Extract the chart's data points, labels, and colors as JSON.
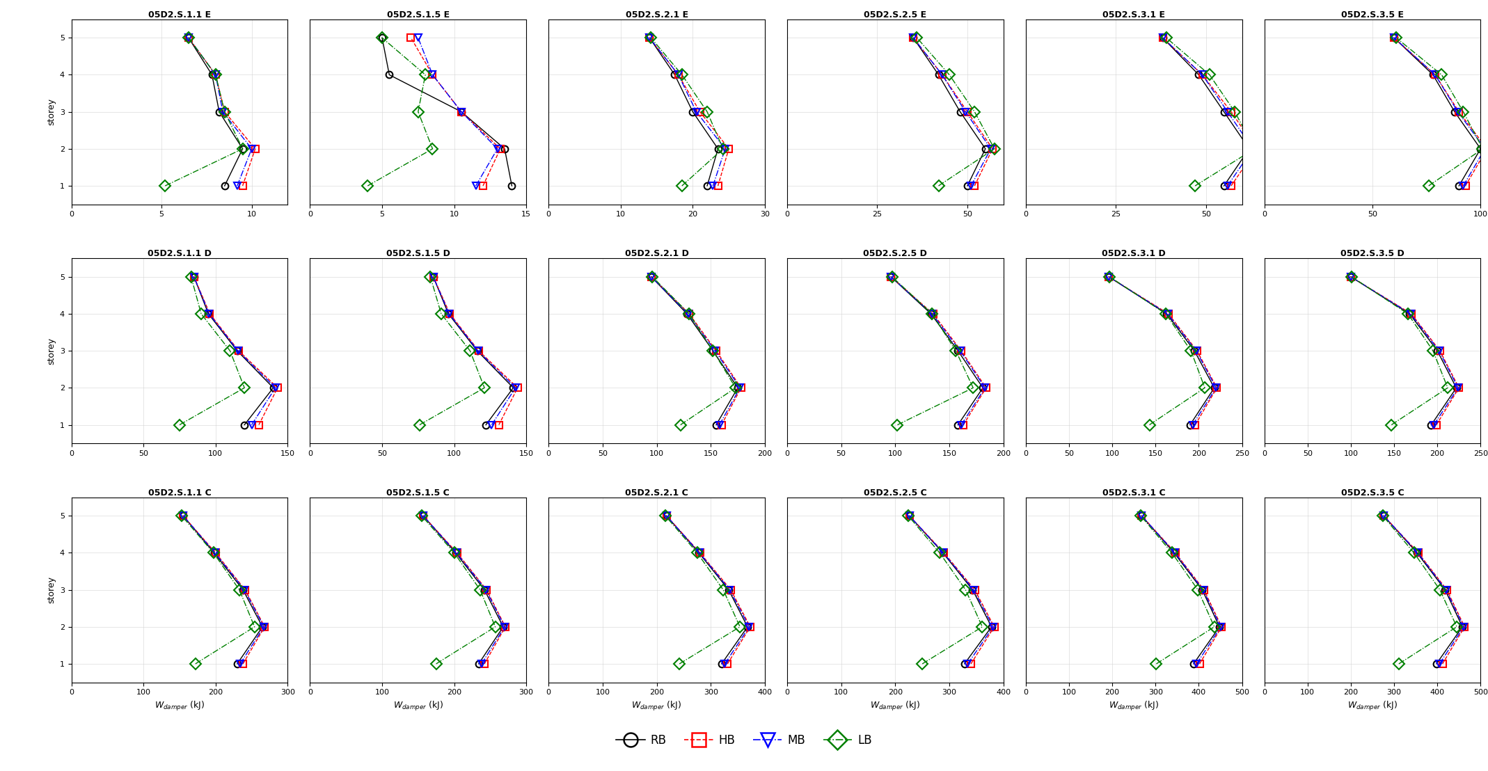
{
  "titles": [
    [
      "05D2.S.1.1 E",
      "05D2.S.1.5 E",
      "05D2.S.2.1 E",
      "05D2.S.2.5 E",
      "05D2.S.3.1 E",
      "05D2.S.3.5 E"
    ],
    [
      "05D2.S.1.1 D",
      "05D2.S.1.5 D",
      "05D2.S.2.1 D",
      "05D2.S.2.5 D",
      "05D2.S.3.1 D",
      "05D2.S.3.5 D"
    ],
    [
      "05D2.S.1.1 C",
      "05D2.S.1.5 C",
      "05D2.S.2.1 C",
      "05D2.S.2.5 C",
      "05D2.S.3.1 C",
      "05D2.S.3.5 C"
    ]
  ],
  "storeys": [
    1,
    2,
    3,
    4,
    5
  ],
  "colors": {
    "RB": "black",
    "HB": "red",
    "MB": "blue",
    "LB": "green"
  },
  "markers": {
    "RB": "o",
    "HB": "s",
    "MB": "v",
    "LB": "D"
  },
  "linestyles": {
    "RB": "-",
    "HB": "--",
    "MB": "-.",
    "LB": "-."
  },
  "series_keys": [
    "RB",
    "HB",
    "MB",
    "LB"
  ],
  "data": {
    "05D2.S.1.1 E": {
      "RB": [
        8.5,
        9.5,
        8.2,
        7.8,
        6.5
      ],
      "HB": [
        9.5,
        10.2,
        8.5,
        8.0,
        6.5
      ],
      "MB": [
        9.2,
        10.0,
        8.4,
        8.0,
        6.5
      ],
      "LB": [
        5.2,
        9.5,
        8.5,
        8.0,
        6.5
      ]
    },
    "05D2.S.1.5 E": {
      "RB": [
        14.0,
        13.5,
        10.5,
        5.5,
        5.0
      ],
      "HB": [
        12.0,
        13.2,
        10.5,
        8.5,
        7.0
      ],
      "MB": [
        11.5,
        13.0,
        10.5,
        8.5,
        7.5
      ],
      "LB": [
        4.0,
        8.5,
        7.5,
        8.0,
        5.0
      ]
    },
    "05D2.S.2.1 E": {
      "RB": [
        22.0,
        23.5,
        20.0,
        17.5,
        14.0
      ],
      "HB": [
        23.5,
        25.0,
        21.0,
        18.0,
        14.0
      ],
      "MB": [
        22.8,
        24.5,
        20.5,
        18.0,
        14.0
      ],
      "LB": [
        18.5,
        24.2,
        22.0,
        18.5,
        14.2
      ]
    },
    "05D2.S.2.5 E": {
      "RB": [
        50.0,
        55.0,
        48.0,
        42.0,
        35.0
      ],
      "HB": [
        52.0,
        57.0,
        50.0,
        43.0,
        35.0
      ],
      "MB": [
        51.0,
        56.5,
        49.5,
        43.0,
        35.0
      ],
      "LB": [
        42.0,
        57.5,
        52.0,
        45.0,
        36.0
      ]
    },
    "05D2.S.3.1 E": {
      "RB": [
        55.0,
        62.0,
        55.0,
        48.0,
        38.0
      ],
      "HB": [
        57.0,
        64.0,
        57.0,
        49.0,
        38.0
      ],
      "MB": [
        56.0,
        63.0,
        56.0,
        49.0,
        38.0
      ],
      "LB": [
        47.0,
        63.5,
        58.0,
        51.0,
        39.0
      ]
    },
    "05D2.S.3.5 E": {
      "RB": [
        90.0,
        100.0,
        88.0,
        78.0,
        60.0
      ],
      "HB": [
        93.0,
        103.0,
        90.0,
        79.0,
        60.0
      ],
      "MB": [
        92.0,
        102.0,
        89.5,
        79.0,
        60.0
      ],
      "LB": [
        76.0,
        101.0,
        92.0,
        82.0,
        61.0
      ]
    },
    "05D2.S.1.1 D": {
      "RB": [
        120.0,
        140.0,
        115.0,
        95.0,
        85.0
      ],
      "HB": [
        130.0,
        143.0,
        116.0,
        96.0,
        85.0
      ],
      "MB": [
        125.0,
        141.5,
        115.5,
        95.5,
        85.0
      ],
      "LB": [
        75.0,
        120.0,
        110.0,
        90.0,
        83.0
      ]
    },
    "05D2.S.1.5 D": {
      "RB": [
        122.0,
        141.0,
        116.0,
        96.0,
        85.5
      ],
      "HB": [
        131.0,
        144.0,
        117.0,
        97.0,
        85.5
      ],
      "MB": [
        126.0,
        142.5,
        116.5,
        96.5,
        85.5
      ],
      "LB": [
        76.0,
        121.0,
        111.0,
        91.0,
        83.5
      ]
    },
    "05D2.S.2.1 D": {
      "RB": [
        155.0,
        175.0,
        152.0,
        128.0,
        95.0
      ],
      "HB": [
        160.0,
        178.0,
        155.0,
        130.0,
        95.0
      ],
      "MB": [
        158.0,
        177.0,
        154.0,
        129.0,
        95.0
      ],
      "LB": [
        122.0,
        173.0,
        152.0,
        130.0,
        96.0
      ]
    },
    "05D2.S.2.5 D": {
      "RB": [
        158.0,
        181.0,
        158.0,
        133.0,
        96.0
      ],
      "HB": [
        163.0,
        184.0,
        161.0,
        135.0,
        96.0
      ],
      "MB": [
        161.0,
        183.0,
        160.0,
        134.0,
        96.0
      ],
      "LB": [
        102.0,
        172.0,
        156.0,
        134.0,
        97.0
      ]
    },
    "05D2.S.3.1 D": {
      "RB": [
        190.0,
        218.0,
        195.0,
        163.0,
        96.0
      ],
      "HB": [
        196.0,
        221.0,
        198.0,
        165.0,
        96.0
      ],
      "MB": [
        193.0,
        220.0,
        197.0,
        164.0,
        96.0
      ],
      "LB": [
        143.0,
        207.0,
        191.0,
        162.0,
        97.0
      ]
    },
    "05D2.S.3.5 D": {
      "RB": [
        193.0,
        222.0,
        200.0,
        168.0,
        100.0
      ],
      "HB": [
        199.0,
        225.0,
        203.0,
        170.0,
        100.0
      ],
      "MB": [
        196.0,
        224.0,
        202.0,
        169.0,
        100.0
      ],
      "LB": [
        147.0,
        212.0,
        195.0,
        166.0,
        101.0
      ]
    },
    "05D2.S.1.1 C": {
      "RB": [
        230.0,
        265.0,
        238.0,
        198.0,
        155.0
      ],
      "HB": [
        238.0,
        268.0,
        241.0,
        200.0,
        155.0
      ],
      "MB": [
        234.0,
        267.0,
        240.0,
        199.0,
        155.0
      ],
      "LB": [
        172.0,
        254.0,
        233.0,
        197.0,
        153.0
      ]
    },
    "05D2.S.1.5 C": {
      "RB": [
        234.0,
        268.0,
        242.0,
        202.0,
        157.0
      ],
      "HB": [
        242.0,
        271.0,
        245.0,
        204.0,
        157.0
      ],
      "MB": [
        238.0,
        270.0,
        244.0,
        203.0,
        157.0
      ],
      "LB": [
        175.0,
        257.0,
        236.0,
        200.0,
        155.0
      ]
    },
    "05D2.S.2.1 C": {
      "RB": [
        320.0,
        368.0,
        333.0,
        278.0,
        218.0
      ],
      "HB": [
        331.0,
        373.0,
        337.0,
        280.0,
        218.0
      ],
      "MB": [
        326.0,
        371.0,
        335.0,
        279.0,
        218.0
      ],
      "LB": [
        242.0,
        354.0,
        323.0,
        275.0,
        216.0
      ]
    },
    "05D2.S.2.5 C": {
      "RB": [
        328.0,
        378.0,
        343.0,
        288.0,
        226.0
      ],
      "HB": [
        340.0,
        383.0,
        347.0,
        290.0,
        226.0
      ],
      "MB": [
        334.0,
        381.0,
        345.0,
        289.0,
        226.0
      ],
      "LB": [
        250.0,
        361.0,
        330.0,
        282.0,
        224.0
      ]
    },
    "05D2.S.3.1 C": {
      "RB": [
        388.0,
        448.0,
        408.0,
        343.0,
        268.0
      ],
      "HB": [
        402.0,
        453.0,
        412.0,
        346.0,
        268.0
      ],
      "MB": [
        395.0,
        451.0,
        410.0,
        345.0,
        268.0
      ],
      "LB": [
        302.0,
        436.0,
        398.0,
        338.0,
        266.0
      ]
    },
    "05D2.S.3.5 C": {
      "RB": [
        398.0,
        458.0,
        418.0,
        353.0,
        276.0
      ],
      "HB": [
        412.0,
        463.0,
        422.0,
        356.0,
        276.0
      ],
      "MB": [
        405.0,
        461.0,
        420.0,
        355.0,
        276.0
      ],
      "LB": [
        311.0,
        445.0,
        406.0,
        346.0,
        274.0
      ]
    }
  },
  "xlims": {
    "05D2.S.1.1 E": [
      0,
      12
    ],
    "05D2.S.1.5 E": [
      0,
      15
    ],
    "05D2.S.2.1 E": [
      0,
      30
    ],
    "05D2.S.2.5 E": [
      0,
      60
    ],
    "05D2.S.3.1 E": [
      0,
      60
    ],
    "05D2.S.3.5 E": [
      0,
      100
    ],
    "05D2.S.1.1 D": [
      0,
      150
    ],
    "05D2.S.1.5 D": [
      0,
      150
    ],
    "05D2.S.2.1 D": [
      0,
      200
    ],
    "05D2.S.2.5 D": [
      0,
      200
    ],
    "05D2.S.3.1 D": [
      0,
      250
    ],
    "05D2.S.3.5 D": [
      0,
      250
    ],
    "05D2.S.1.1 C": [
      0,
      300
    ],
    "05D2.S.1.5 C": [
      0,
      300
    ],
    "05D2.S.2.1 C": [
      0,
      400
    ],
    "05D2.S.2.5 C": [
      0,
      400
    ],
    "05D2.S.3.1 C": [
      0,
      500
    ],
    "05D2.S.3.5 C": [
      0,
      500
    ]
  },
  "xtick_steps": {
    "05D2.S.1.1 E": 5,
    "05D2.S.1.5 E": 5,
    "05D2.S.2.1 E": 10,
    "05D2.S.2.5 E": 25,
    "05D2.S.3.1 E": 25,
    "05D2.S.3.5 E": 50,
    "05D2.S.1.1 D": 50,
    "05D2.S.1.5 D": 50,
    "05D2.S.2.1 D": 50,
    "05D2.S.2.5 D": 50,
    "05D2.S.3.1 D": 50,
    "05D2.S.3.5 D": 50,
    "05D2.S.1.1 C": 100,
    "05D2.S.1.5 C": 100,
    "05D2.S.2.1 C": 100,
    "05D2.S.2.5 C": 100,
    "05D2.S.3.1 C": 100,
    "05D2.S.3.5 C": 100
  },
  "ylabel": "storey",
  "legend_labels": [
    "RB",
    "HB",
    "MB",
    "LB"
  ],
  "title_fontsize": 9,
  "axis_fontsize": 9,
  "tick_fontsize": 8,
  "legend_fontsize": 12
}
